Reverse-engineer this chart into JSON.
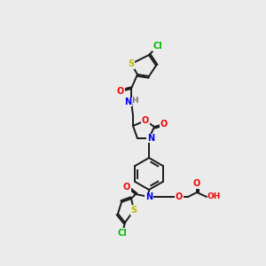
{
  "bg_color": "#ebebeb",
  "bond_color": "#1a1a1a",
  "bond_width": 1.4,
  "atom_colors": {
    "N": "#0000ee",
    "O": "#ee0000",
    "S": "#bbbb00",
    "Cl": "#00bb00",
    "H": "#777777",
    "C": "#111111"
  },
  "font_size": 7.0,
  "font_size_small": 6.5
}
